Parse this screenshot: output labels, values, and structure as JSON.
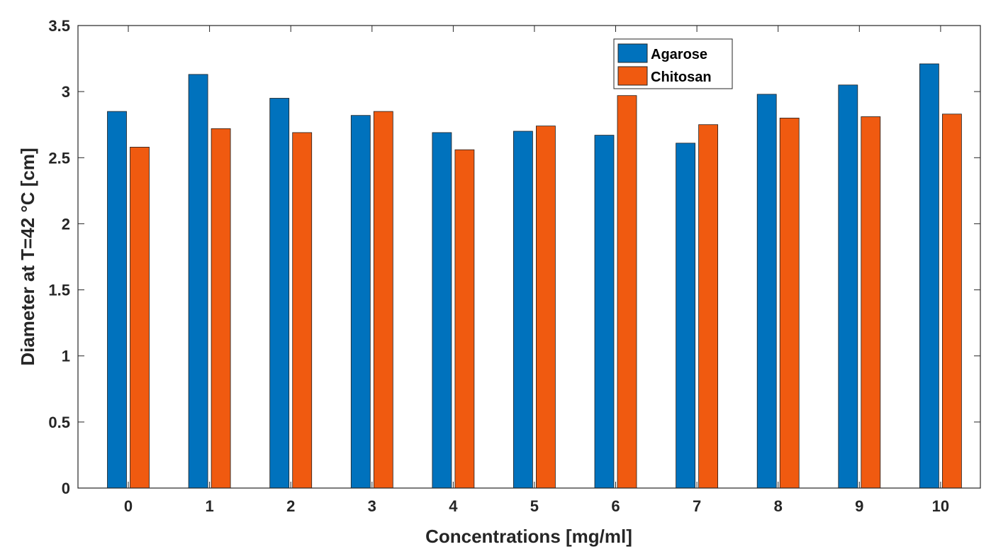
{
  "chart_data": {
    "type": "bar",
    "title": "",
    "xlabel": "Concentrations [mg/ml]",
    "ylabel": "Diameter at T=42 °C [cm]",
    "ylim": [
      0,
      3.5
    ],
    "yticks": [
      0,
      0.5,
      1,
      1.5,
      2,
      2.5,
      3,
      3.5
    ],
    "ytick_labels": [
      "0",
      "0.5",
      "1",
      "1.5",
      "2",
      "2.5",
      "3",
      "3.5"
    ],
    "categories": [
      "0",
      "1",
      "2",
      "3",
      "4",
      "5",
      "6",
      "7",
      "8",
      "9",
      "10"
    ],
    "legend_position": "top-right",
    "grid": false,
    "series": [
      {
        "name": "Agarose",
        "color": "#0072BD",
        "values": [
          2.85,
          3.13,
          2.95,
          2.82,
          2.69,
          2.7,
          2.67,
          2.61,
          2.98,
          3.05,
          3.21
        ]
      },
      {
        "name": "Chitosan",
        "color": "#F05A10",
        "values": [
          2.58,
          2.72,
          2.69,
          2.85,
          2.56,
          2.74,
          2.97,
          2.75,
          2.8,
          2.81,
          2.83
        ]
      }
    ]
  }
}
